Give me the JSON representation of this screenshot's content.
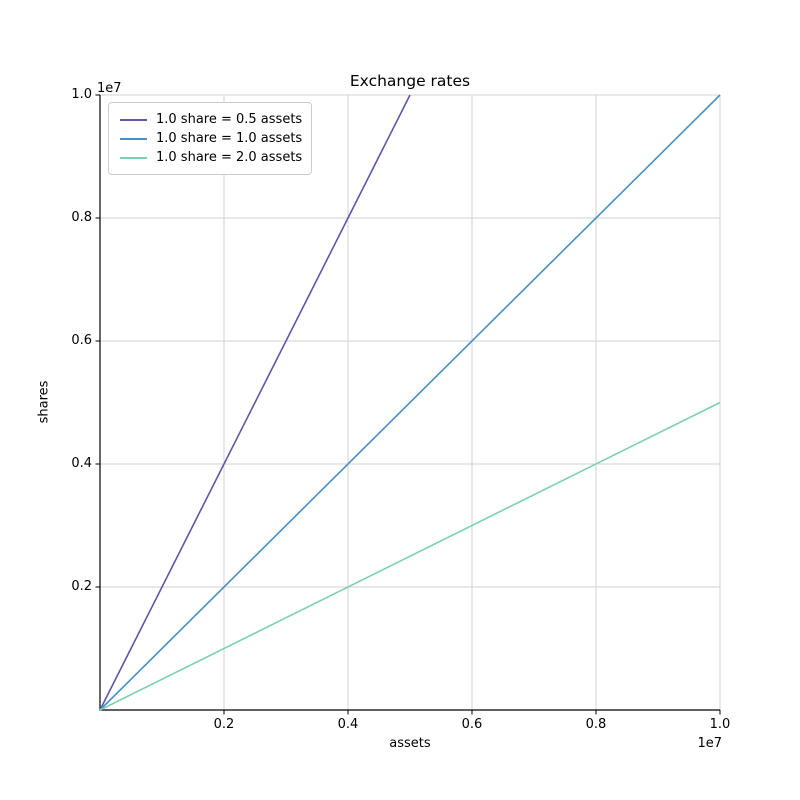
{
  "chart_data": {
    "type": "line",
    "title": "Exchange rates",
    "xlabel": "assets",
    "ylabel": "shares",
    "x_offset_label": "1e7",
    "y_offset_label": "1e7",
    "xlim": [
      0,
      10000000
    ],
    "ylim": [
      0,
      10000000
    ],
    "x_ticks": [
      2000000,
      4000000,
      6000000,
      8000000,
      10000000
    ],
    "x_tick_labels": [
      "0.2",
      "0.4",
      "0.6",
      "0.8",
      "1.0"
    ],
    "y_ticks": [
      2000000,
      4000000,
      6000000,
      8000000,
      10000000
    ],
    "y_tick_labels": [
      "0.2",
      "0.4",
      "0.6",
      "0.8",
      "1.0"
    ],
    "grid": true,
    "legend_position": "upper left",
    "series": [
      {
        "name": "1.0 share = 0.5 assets",
        "assets_per_share": 0.5,
        "color": "#5e57a8",
        "points": [
          [
            0,
            0
          ],
          [
            5000000,
            10000000
          ]
        ]
      },
      {
        "name": "1.0 share = 1.0 assets",
        "assets_per_share": 1.0,
        "color": "#478fc5",
        "points": [
          [
            0,
            0
          ],
          [
            10000000,
            10000000
          ]
        ]
      },
      {
        "name": "1.0 share = 2.0 assets",
        "assets_per_share": 2.0,
        "color": "#7ad1ab",
        "points": [
          [
            0,
            0
          ],
          [
            10000000,
            5000000
          ]
        ]
      }
    ],
    "style": {
      "grid_color": "#d2d2d2",
      "spine_color": "#000000",
      "tick_color": "#000000",
      "legend_border_color": "#cccccc",
      "background_color": "#ffffff",
      "line_width": 1.6
    }
  }
}
